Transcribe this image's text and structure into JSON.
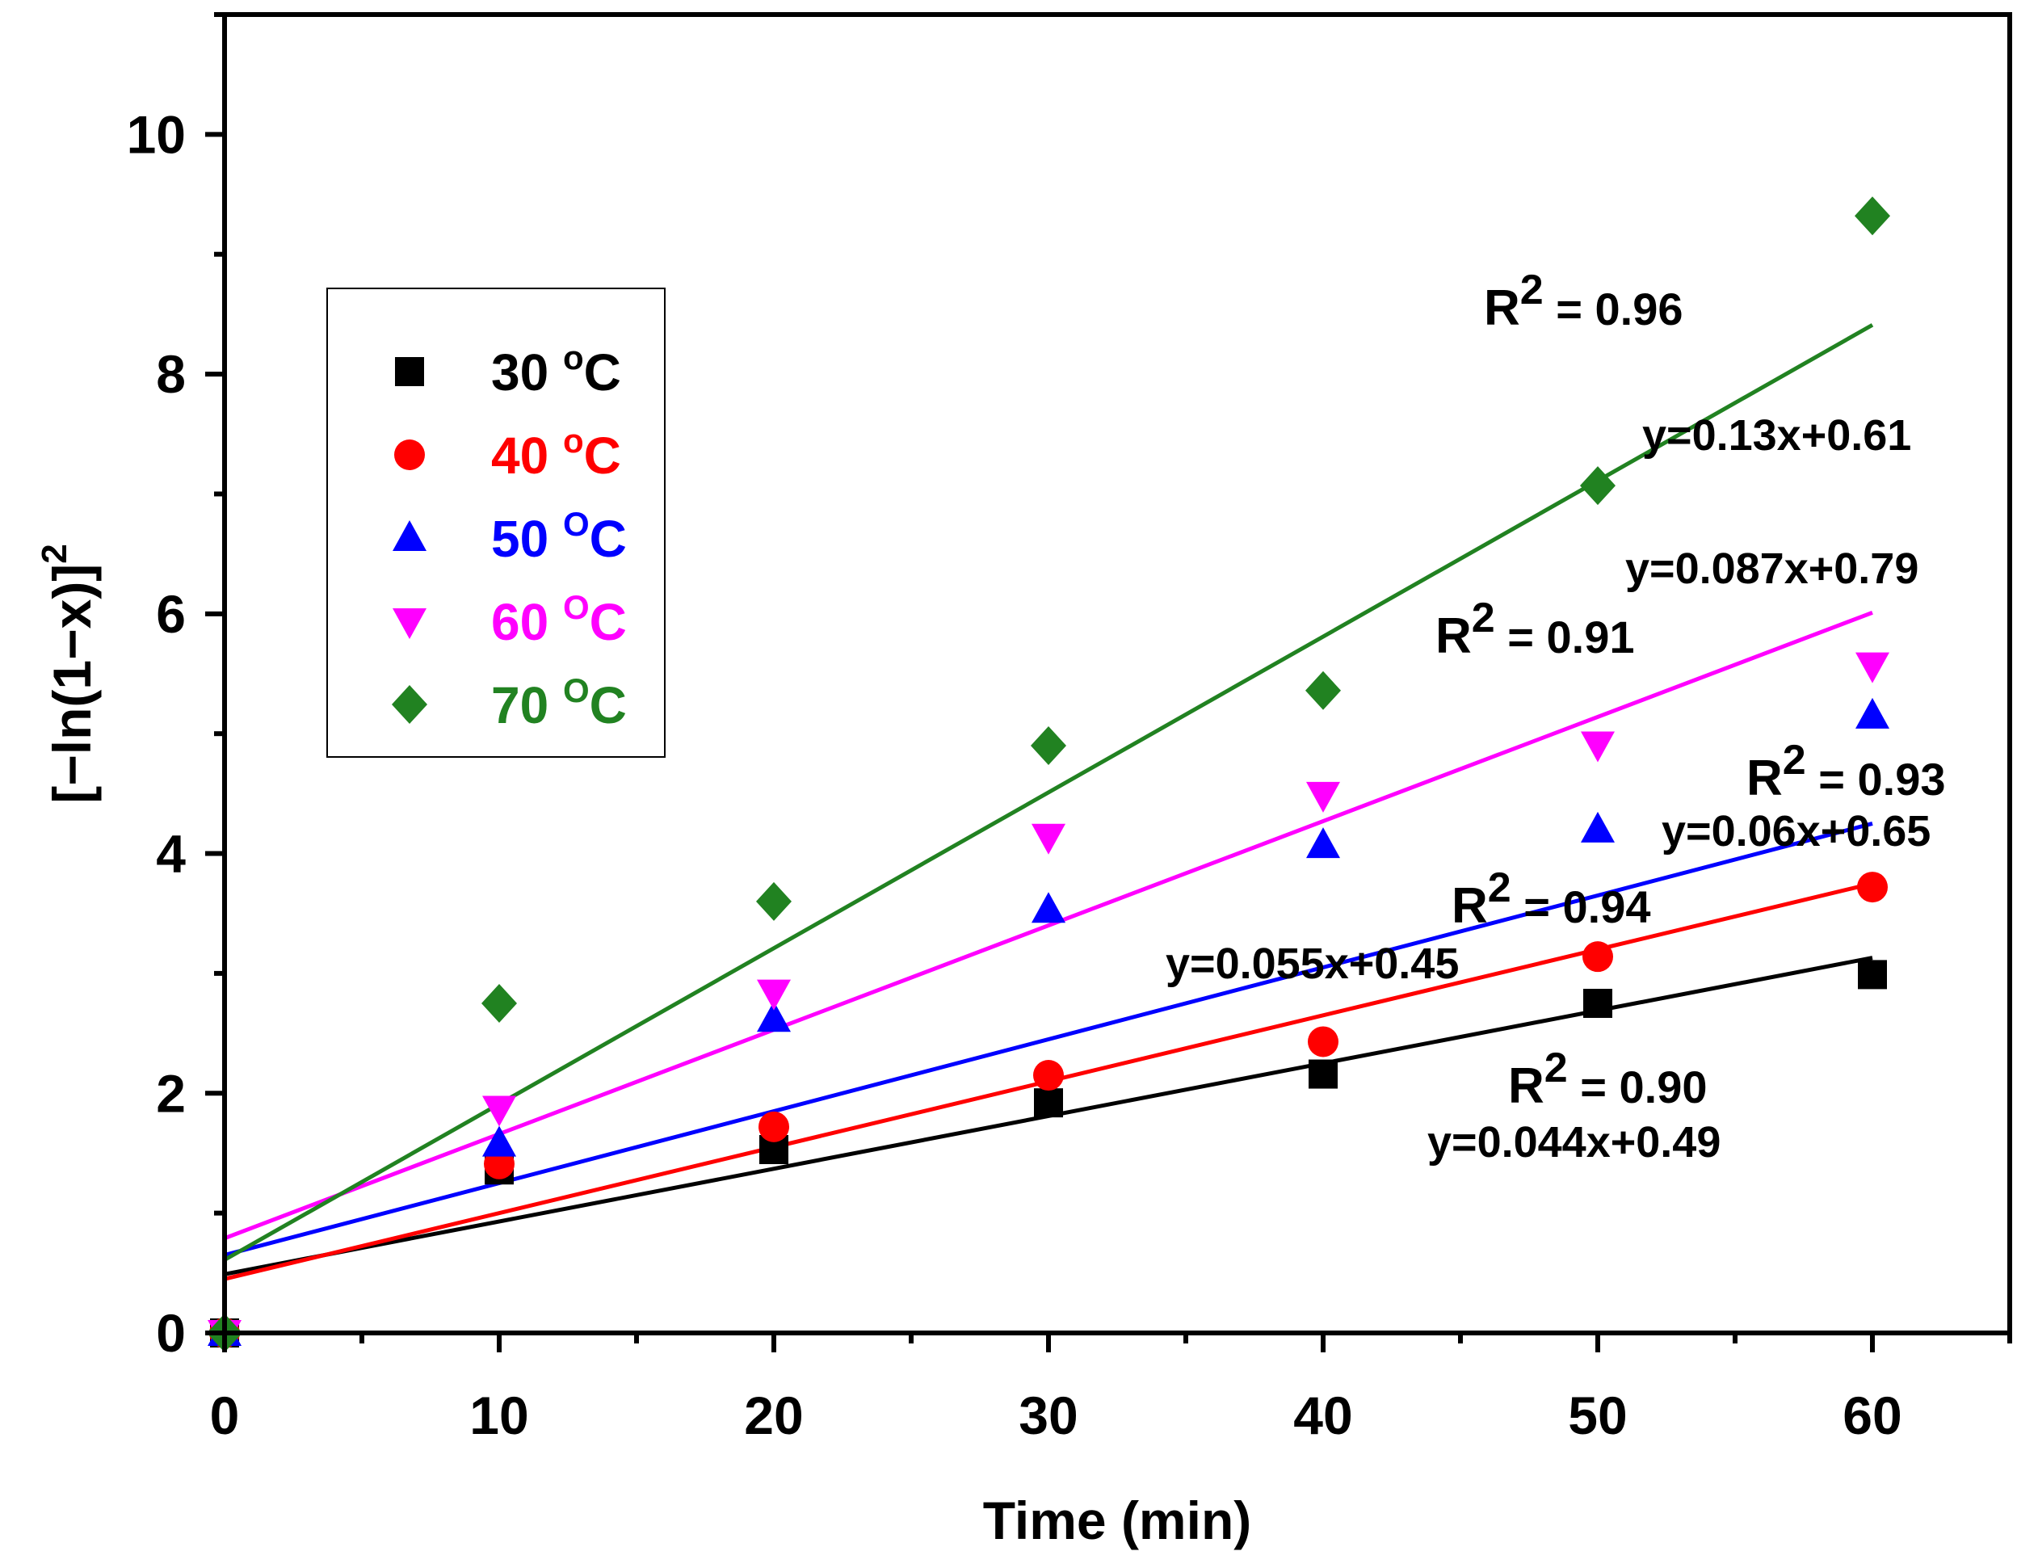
{
  "chart_data": {
    "type": "scatter",
    "title": "",
    "xlabel": "Time (min)",
    "ylabel": "[−ln(1−x)]",
    "ylabel_sup": "2",
    "xlim": [
      0,
      65
    ],
    "ylim": [
      0,
      11
    ],
    "x_ticks": [
      0,
      10,
      20,
      30,
      40,
      50,
      60
    ],
    "x_tick_labels": [
      "0",
      "10",
      "20",
      "30",
      "40",
      "50",
      "60"
    ],
    "y_ticks": [
      0,
      2,
      4,
      6,
      8,
      10
    ],
    "y_tick_labels": [
      "0",
      "2",
      "4",
      "6",
      "8",
      "10"
    ],
    "grid": false,
    "legend_position": "upper-left",
    "series": [
      {
        "name": "30",
        "unit_sup": "o",
        "unit": "C",
        "color": "#000000",
        "marker": "square",
        "x": [
          0,
          10,
          20,
          30,
          40,
          50,
          60
        ],
        "y": [
          0,
          1.36,
          1.53,
          1.92,
          2.16,
          2.75,
          2.99
        ],
        "fit": {
          "slope": 0.044,
          "intercept": 0.49,
          "r2_value": "0.90",
          "equation": "y=0.044x+0.49"
        }
      },
      {
        "name": "40",
        "unit_sup": "o",
        "unit": "C",
        "color": "#ff0000",
        "marker": "circle",
        "x": [
          0,
          10,
          20,
          30,
          40,
          50,
          60
        ],
        "y": [
          0,
          1.41,
          1.72,
          2.15,
          2.43,
          3.14,
          3.72
        ],
        "fit": {
          "slope": 0.055,
          "intercept": 0.45,
          "r2_value": "0.94",
          "equation": "y=0.055x+0.45"
        }
      },
      {
        "name": "50",
        "unit_sup": "O",
        "unit": "C",
        "color": "#0000ff",
        "marker": "triangle-up",
        "x": [
          0,
          10,
          20,
          30,
          40,
          50,
          60
        ],
        "y": [
          0,
          1.58,
          2.62,
          3.53,
          4.07,
          4.2,
          5.15
        ],
        "fit": {
          "slope": 0.06,
          "intercept": 0.65,
          "r2_value": "0.93",
          "equation": "y=0.06x+0.65"
        }
      },
      {
        "name": "60",
        "unit_sup": "O",
        "unit": "C",
        "color": "#ff00ff",
        "marker": "triangle-down",
        "x": [
          0,
          10,
          20,
          30,
          40,
          50,
          60
        ],
        "y": [
          0,
          1.87,
          2.84,
          4.14,
          4.49,
          4.91,
          5.57
        ],
        "fit": {
          "slope": 0.087,
          "intercept": 0.79,
          "r2_value": "0.91",
          "equation": "y=0.087x+0.79"
        }
      },
      {
        "name": "70",
        "unit_sup": "O",
        "unit": "C",
        "color": "#218221",
        "marker": "diamond",
        "x": [
          0,
          10,
          20,
          30,
          40,
          50,
          60
        ],
        "y": [
          0,
          2.75,
          3.6,
          4.9,
          5.36,
          7.07,
          9.32
        ],
        "fit": {
          "slope": 0.13,
          "intercept": 0.61,
          "r2_value": "0.96",
          "equation": "y=0.13x+0.61"
        }
      }
    ],
    "annotations": {
      "r2_prefix": "R",
      "r2_sup": "2",
      "r2_joiner": " = "
    }
  }
}
